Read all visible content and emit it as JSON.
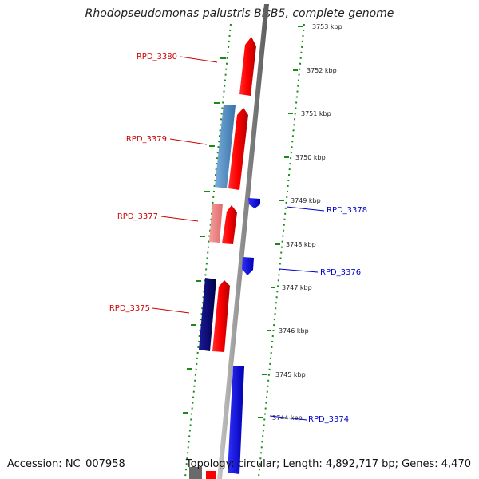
{
  "title": "Rhodopseudomonas palustris BisB5, complete genome",
  "footer": {
    "accession": "Accession: NC_007958",
    "topology": "Topology: circular; Length: 4,892,717 bp; Genes: 4,470"
  },
  "colors": {
    "forward_strand": "#e80000",
    "reverse_strand": "#0000ff",
    "forward_label": "#cc0000",
    "reverse_label": "#0000cc",
    "backbone": "#8c8c8c",
    "dotted_track": "#1a8a1a"
  },
  "ruler_ticks": [
    {
      "label": "3753 kbp"
    },
    {
      "label": "3752 kbp"
    },
    {
      "label": "3751 kbp"
    },
    {
      "label": "3750 kbp"
    },
    {
      "label": "3749 kbp"
    },
    {
      "label": "3748 kbp"
    },
    {
      "label": "3747 kbp"
    },
    {
      "label": "3746 kbp"
    },
    {
      "label": "3745 kbp"
    },
    {
      "label": "3744 kbp"
    }
  ],
  "gene_labels": [
    {
      "name": "RPD_3380",
      "strand": "forward"
    },
    {
      "name": "RPD_3379",
      "strand": "forward"
    },
    {
      "name": "RPD_3378",
      "strand": "reverse"
    },
    {
      "name": "RPD_3377",
      "strand": "forward"
    },
    {
      "name": "RPD_3376",
      "strand": "reverse"
    },
    {
      "name": "RPD_3375",
      "strand": "forward"
    },
    {
      "name": "RPD_3374",
      "strand": "reverse"
    }
  ]
}
